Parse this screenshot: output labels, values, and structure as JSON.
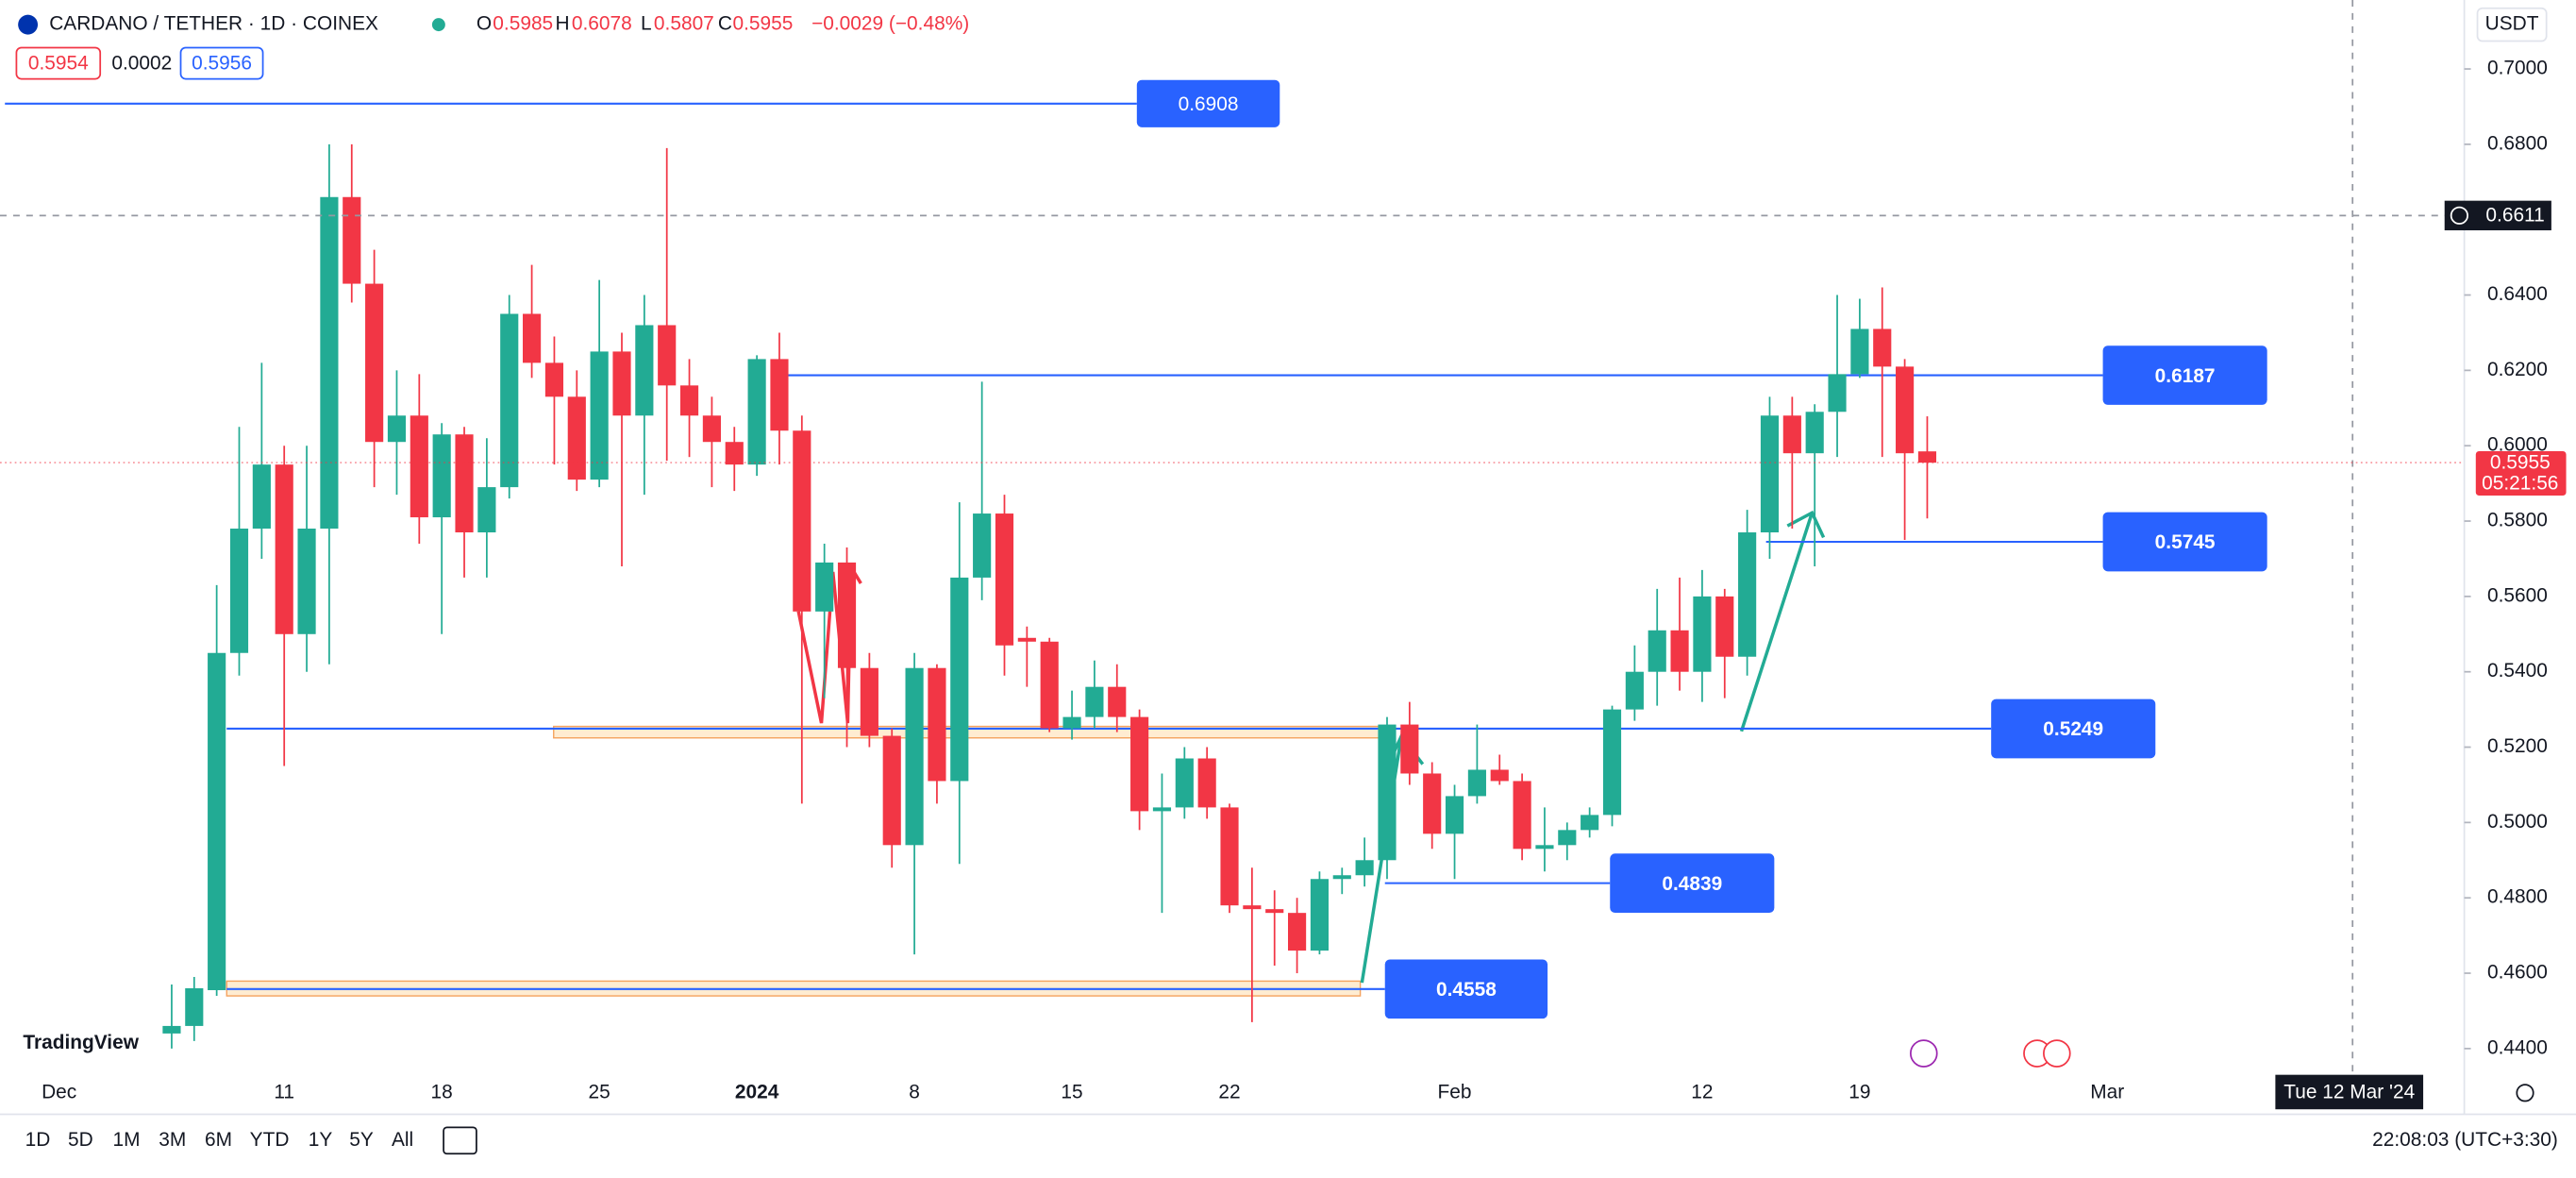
{
  "header": {
    "symbol": "CARDANO / TETHER · 1D · COINEX",
    "ohlc_letters": [
      "O",
      "H",
      "L",
      "C"
    ],
    "change": "−0.0029 (−0.48%)",
    "bid": "0.5954",
    "spread": "0.0002",
    "ask": "0.5956",
    "currency": "USDT"
  },
  "chart_data": {
    "type": "candlestick",
    "categories": [
      "Dec",
      null,
      null,
      null,
      null,
      null,
      null,
      null,
      null,
      null,
      "11",
      null,
      null,
      null,
      null,
      null,
      null,
      "18",
      null,
      null,
      null,
      null,
      null,
      null,
      "25",
      null,
      null,
      null,
      null,
      null,
      null,
      "2024",
      null,
      null,
      null,
      null,
      null,
      null,
      "8",
      null,
      null,
      null,
      null,
      null,
      null,
      "15",
      null,
      null,
      null,
      null,
      null,
      null,
      "22",
      null,
      null,
      null,
      null,
      null,
      null,
      null,
      null,
      null,
      "Feb",
      null,
      null,
      null,
      null,
      null,
      null,
      null,
      null,
      null,
      null,
      "12",
      null,
      null,
      null,
      null,
      null,
      null,
      "19",
      null,
      null,
      null,
      null,
      null,
      null,
      null,
      null,
      null,
      null,
      "Mar",
      null,
      null,
      null,
      null,
      null,
      null,
      null,
      null,
      null,
      null,
      null,
      null,
      null,
      null,
      null
    ],
    "open": [
      null,
      null,
      null,
      null,
      null,
      0.444,
      0.446,
      0.4555,
      0.545,
      0.578,
      0.595,
      0.55,
      0.578,
      0.666,
      0.643,
      0.601,
      0.608,
      0.581,
      0.603,
      0.577,
      0.589,
      0.635,
      0.622,
      0.613,
      0.591,
      0.625,
      0.608,
      0.632,
      0.616,
      0.608,
      0.601,
      0.595,
      0.623,
      0.604,
      0.556,
      0.569,
      0.541,
      0.523,
      0.494,
      0.541,
      0.511,
      0.565,
      0.582,
      0.549,
      0.548,
      0.525,
      0.528,
      0.536,
      0.528,
      0.503,
      0.504,
      0.517,
      0.504,
      0.478,
      0.477,
      0.476,
      0.466,
      0.485,
      0.486,
      0.49,
      0.526,
      0.513,
      0.497,
      0.507,
      0.514,
      0.511,
      0.493,
      0.494,
      0.498,
      0.502,
      0.53,
      0.54,
      0.551,
      0.54,
      0.56,
      0.544,
      0.577,
      0.608,
      0.598,
      0.609,
      0.619,
      0.631,
      0.621,
      0.5985,
      null,
      null,
      null,
      null,
      null,
      null,
      null,
      null,
      null,
      null,
      null,
      null,
      null,
      null,
      null,
      null,
      null,
      null,
      null,
      null,
      null,
      null,
      null
    ],
    "high": [
      null,
      null,
      null,
      null,
      null,
      0.457,
      0.459,
      0.563,
      0.605,
      0.622,
      0.6,
      0.6,
      0.68,
      0.68,
      0.652,
      0.62,
      0.619,
      0.606,
      0.605,
      0.602,
      0.64,
      0.648,
      0.629,
      0.62,
      0.644,
      0.63,
      0.64,
      0.679,
      0.623,
      0.613,
      0.605,
      0.624,
      0.63,
      0.608,
      0.574,
      0.573,
      0.545,
      0.525,
      0.545,
      0.542,
      0.585,
      0.617,
      0.587,
      0.552,
      0.549,
      0.535,
      0.543,
      0.542,
      0.53,
      0.513,
      0.52,
      0.52,
      0.505,
      0.488,
      0.482,
      0.48,
      0.487,
      0.488,
      0.496,
      0.528,
      0.532,
      0.516,
      0.51,
      0.526,
      0.518,
      0.513,
      0.504,
      0.5,
      0.504,
      0.531,
      0.547,
      0.562,
      0.565,
      0.567,
      0.562,
      0.583,
      0.613,
      0.613,
      0.611,
      0.64,
      0.639,
      0.642,
      0.623,
      0.6078,
      null,
      null,
      null,
      null,
      null,
      null,
      null,
      null,
      null,
      null,
      null,
      null,
      null,
      null,
      null,
      null,
      null,
      null,
      null,
      null,
      null,
      null,
      null
    ],
    "low": [
      null,
      null,
      null,
      null,
      null,
      0.44,
      0.442,
      0.454,
      0.539,
      0.57,
      0.515,
      0.54,
      0.542,
      0.638,
      0.589,
      0.587,
      0.574,
      0.55,
      0.565,
      0.565,
      0.586,
      0.618,
      0.595,
      0.588,
      0.589,
      0.568,
      0.587,
      0.596,
      0.597,
      0.589,
      0.588,
      0.592,
      0.595,
      0.505,
      0.533,
      0.52,
      0.52,
      0.488,
      0.465,
      0.505,
      0.489,
      0.559,
      0.539,
      0.536,
      0.524,
      0.522,
      0.525,
      0.524,
      0.498,
      0.476,
      0.501,
      0.501,
      0.476,
      0.447,
      0.462,
      0.46,
      0.465,
      0.481,
      0.483,
      0.485,
      0.51,
      0.493,
      0.485,
      0.505,
      0.51,
      0.49,
      0.487,
      0.49,
      0.496,
      0.499,
      0.527,
      0.531,
      0.535,
      0.532,
      0.533,
      0.539,
      0.57,
      0.578,
      0.568,
      0.597,
      0.618,
      0.597,
      0.575,
      0.5807,
      null,
      null,
      null,
      null,
      null,
      null,
      null,
      null,
      null,
      null,
      null,
      null,
      null,
      null,
      null,
      null,
      null,
      null,
      null,
      null,
      null,
      null,
      null
    ],
    "close": [
      null,
      null,
      null,
      null,
      null,
      0.446,
      0.456,
      0.545,
      0.578,
      0.595,
      0.55,
      0.578,
      0.666,
      0.643,
      0.601,
      0.608,
      0.581,
      0.603,
      0.577,
      0.589,
      0.635,
      0.622,
      0.613,
      0.591,
      0.625,
      0.608,
      0.632,
      0.616,
      0.608,
      0.601,
      0.595,
      0.623,
      0.604,
      0.556,
      0.569,
      0.541,
      0.523,
      0.494,
      0.541,
      0.511,
      0.565,
      0.582,
      0.547,
      0.548,
      0.525,
      0.528,
      0.536,
      0.528,
      0.503,
      0.504,
      0.517,
      0.504,
      0.478,
      0.477,
      0.476,
      0.466,
      0.485,
      0.486,
      0.49,
      0.526,
      0.513,
      0.497,
      0.507,
      0.514,
      0.511,
      0.493,
      0.494,
      0.498,
      0.502,
      0.53,
      0.54,
      0.551,
      0.54,
      0.56,
      0.544,
      0.577,
      0.608,
      0.598,
      0.609,
      0.619,
      0.631,
      0.621,
      0.598,
      0.5955,
      null,
      null,
      null,
      null,
      null,
      null,
      null,
      null,
      null,
      null,
      null,
      null,
      null,
      null,
      null,
      null,
      null,
      null,
      null,
      null,
      null,
      null,
      null
    ],
    "up_color": "#22ab94",
    "down_color": "#f23645",
    "ylim": [
      0.4326,
      0.7183
    ],
    "yticks": [
      {
        "value": 0.44,
        "label": "0.4400"
      },
      {
        "value": 0.46,
        "label": "0.4600"
      },
      {
        "value": 0.48,
        "label": "0.4800"
      },
      {
        "value": 0.5,
        "label": "0.5000"
      },
      {
        "value": 0.52,
        "label": "0.5200"
      },
      {
        "value": 0.54,
        "label": "0.5400"
      },
      {
        "value": 0.56,
        "label": "0.5600"
      },
      {
        "value": 0.58,
        "label": "0.5800"
      },
      {
        "value": 0.6,
        "label": "0.6000"
      },
      {
        "value": 0.62,
        "label": "0.6200"
      },
      {
        "value": 0.64,
        "label": "0.6400"
      },
      {
        "value": 0.66,
        "label": "0.6600"
      },
      {
        "value": 0.68,
        "label": "0.6800"
      },
      {
        "value": 0.7,
        "label": "0.7000"
      }
    ],
    "levels": [
      0.6908,
      0.6187,
      0.5745,
      0.5249,
      0.4839,
      0.4558
    ],
    "level_color": "#2962ff",
    "crosshair_price": 0.6611,
    "crosshair_date": "Tue 12 Mar '24",
    "countdown": "05:21:56"
  },
  "toolbar": {
    "ranges": [
      "1D",
      "5D",
      "1M",
      "3M",
      "6M",
      "YTD",
      "1Y",
      "5Y",
      "All"
    ],
    "clock": "22:08:03 (UTC+3:30)"
  },
  "branding": "TradingView"
}
